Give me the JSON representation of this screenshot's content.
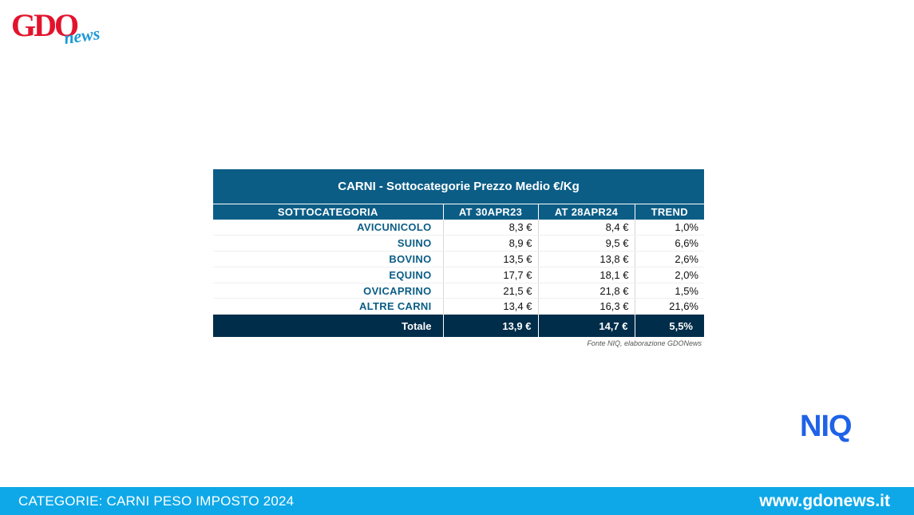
{
  "logo": {
    "brand": "GDO",
    "suffix": "news",
    "brand_color": "#e3132c",
    "suffix_color": "#1d9ad6"
  },
  "table": {
    "title": "CARNI - Sottocategorie Prezzo Medio €/Kg",
    "headers": [
      "SOTTOCATEGORIA",
      "AT 30APR23",
      "AT 28APR24",
      "TREND"
    ],
    "rows": [
      [
        "AVICUNICOLO",
        "8,3 €",
        "8,4 €",
        "1,0%"
      ],
      [
        "SUINO",
        "8,9 €",
        "9,5 €",
        "6,6%"
      ],
      [
        "BOVINO",
        "13,5 €",
        "13,8 €",
        "2,6%"
      ],
      [
        "EQUINO",
        "17,7 €",
        "18,1 €",
        "2,0%"
      ],
      [
        "OVICAPRINO",
        "21,5 €",
        "21,8 €",
        "1,5%"
      ],
      [
        "ALTRE CARNI",
        "13,4 €",
        "16,3 €",
        "21,6%"
      ]
    ],
    "total": [
      "Totale",
      "13,9 €",
      "14,7 €",
      "5,5%"
    ],
    "header_color": "#0b5d86",
    "total_color": "#002d4a"
  },
  "source_note": "Fonte NIQ, elaborazione GDONews",
  "niq_logo": {
    "text": "NIQ",
    "color": "#1f62e8"
  },
  "footer": {
    "category": "CATEGORIE: CARNI PESO IMPOSTO 2024",
    "website": "www.gdonews.it",
    "color": "#0ea8e8"
  }
}
